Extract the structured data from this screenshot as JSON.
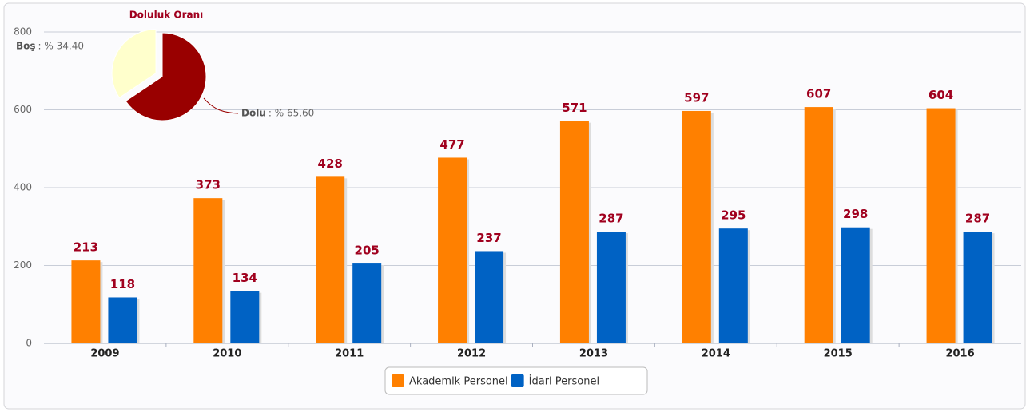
{
  "chart_data": [
    {
      "type": "bar",
      "categories": [
        "2009",
        "2010",
        "2011",
        "2012",
        "2013",
        "2014",
        "2015",
        "2016"
      ],
      "series": [
        {
          "name": "Akademik Personel",
          "color": "#ff8000",
          "values": [
            213,
            373,
            428,
            477,
            571,
            597,
            607,
            604
          ]
        },
        {
          "name": "İdari Personel",
          "color": "#0062c4",
          "values": [
            118,
            134,
            205,
            237,
            287,
            295,
            298,
            287
          ]
        }
      ],
      "ylim": [
        0,
        800
      ],
      "yticks": [
        0,
        200,
        400,
        600,
        800
      ],
      "grid": true,
      "legend": "bottom"
    },
    {
      "type": "pie",
      "title": "Doluluk Oranı",
      "categories": [
        "Boş",
        "Dolu"
      ],
      "values": [
        34.4,
        65.6
      ],
      "value_labels": [
        ": % 34.40",
        ": % 65.60"
      ],
      "colors": [
        "#ffffcc",
        "#990000"
      ]
    }
  ]
}
